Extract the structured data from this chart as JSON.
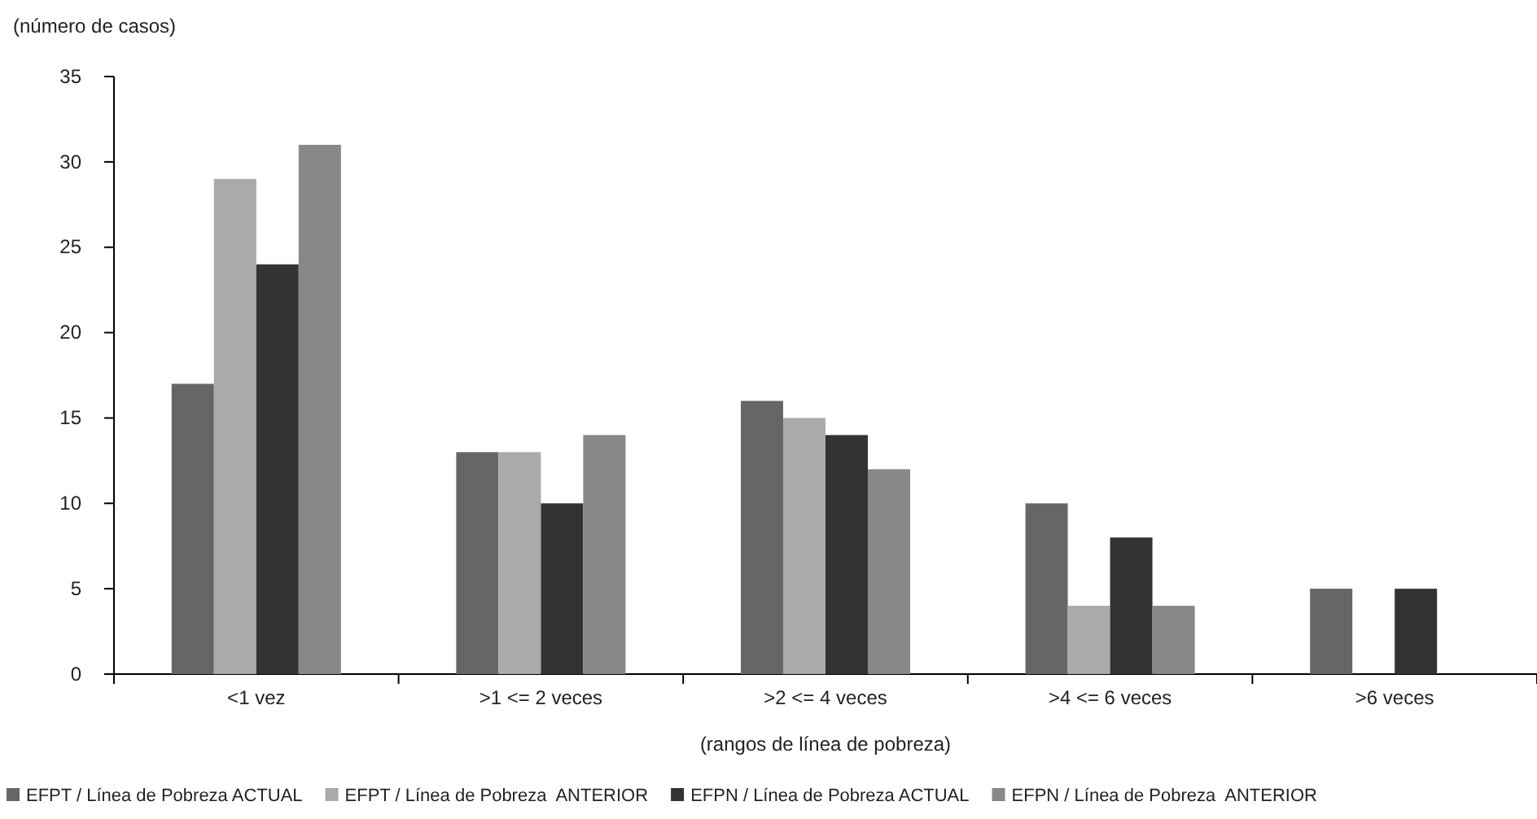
{
  "chart_data": {
    "type": "bar",
    "ylabel": "(número de casos)",
    "xlabel": "(rangos de línea de pobreza)",
    "categories": [
      "<1 vez",
      ">1 <= 2 veces",
      ">2 <= 4 veces",
      ">4 <= 6 veces",
      ">6 veces"
    ],
    "series": [
      {
        "name": "EFPT / Línea de Pobreza ACTUAL",
        "color": "#666666",
        "values": [
          17,
          13,
          16,
          10,
          5
        ]
      },
      {
        "name": "EFPT / Línea de Pobreza  ANTERIOR",
        "color": "#aaaaaa",
        "values": [
          29,
          13,
          15,
          4,
          0
        ]
      },
      {
        "name": "EFPN / Línea de Pobreza ACTUAL",
        "color": "#333333",
        "values": [
          24,
          10,
          14,
          8,
          5
        ]
      },
      {
        "name": "EFPN / Línea de Pobreza  ANTERIOR",
        "color": "#888888",
        "values": [
          31,
          14,
          12,
          4,
          0
        ]
      }
    ],
    "ylim": [
      0,
      35
    ],
    "yticks": [
      0,
      5,
      10,
      15,
      20,
      25,
      30,
      35
    ],
    "grid": false,
    "legend": "bottom"
  }
}
